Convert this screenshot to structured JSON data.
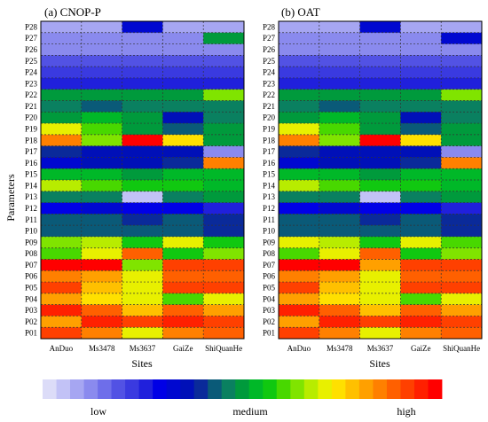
{
  "chart_data": [
    {
      "type": "heatmap",
      "title": "(a) CNOP-P",
      "xlabel": "Sites",
      "ylabel": "Parameters",
      "categories": [
        "AnDuo",
        "Ms3478",
        "Ms3637",
        "GaiZe",
        "ShiQuanHe"
      ],
      "parameters": [
        "P28",
        "P27",
        "P26",
        "P25",
        "P24",
        "P23",
        "P22",
        "P21",
        "P20",
        "P19",
        "P18",
        "P17",
        "P16",
        "P15",
        "P14",
        "P13",
        "P12",
        "P11",
        "P10",
        "P09",
        "P08",
        "P07",
        "P06",
        "P05",
        "P04",
        "P03",
        "P02",
        "P01"
      ],
      "values": [
        [
          2,
          2,
          9,
          2,
          2
        ],
        [
          3,
          3,
          3,
          3,
          14
        ],
        [
          3,
          3,
          3,
          3,
          3
        ],
        [
          5,
          5,
          5,
          5,
          5
        ],
        [
          6,
          6,
          6,
          6,
          6
        ],
        [
          7,
          7,
          7,
          7,
          7
        ],
        [
          14,
          14,
          14,
          14,
          18
        ],
        [
          13,
          12,
          13,
          13,
          13
        ],
        [
          14,
          15,
          14,
          10,
          13
        ],
        [
          20,
          17,
          14,
          12,
          14
        ],
        [
          24,
          18,
          28,
          21,
          14
        ],
        [
          11,
          10,
          10,
          10,
          3
        ],
        [
          9,
          10,
          10,
          11,
          24
        ],
        [
          15,
          15,
          14,
          15,
          15
        ],
        [
          19,
          17,
          16,
          16,
          15
        ],
        [
          13,
          13,
          1,
          13,
          14
        ],
        [
          8,
          9,
          8,
          8,
          7
        ],
        [
          12,
          12,
          11,
          12,
          11
        ],
        [
          12,
          12,
          12,
          12,
          11
        ],
        [
          18,
          19,
          16,
          20,
          16
        ],
        [
          17,
          20,
          25,
          16,
          18
        ],
        [
          28,
          28,
          18,
          26,
          26
        ],
        [
          24,
          23,
          20,
          25,
          25
        ],
        [
          26,
          22,
          20,
          26,
          26
        ],
        [
          23,
          21,
          20,
          17,
          20
        ],
        [
          27,
          25,
          22,
          25,
          23
        ],
        [
          23,
          27,
          26,
          27,
          26
        ],
        [
          26,
          24,
          20,
          24,
          25
        ]
      ]
    },
    {
      "type": "heatmap",
      "title": "(b) OAT",
      "xlabel": "Sites",
      "ylabel": "",
      "categories": [
        "AnDuo",
        "Ms3478",
        "Ms3637",
        "GaiZe",
        "ShiQuanHe"
      ],
      "parameters": [
        "P28",
        "P27",
        "P26",
        "P25",
        "P24",
        "P23",
        "P22",
        "P21",
        "P20",
        "P19",
        "P18",
        "P17",
        "P16",
        "P15",
        "P14",
        "P13",
        "P12",
        "P11",
        "P10",
        "P09",
        "P08",
        "P07",
        "P06",
        "P05",
        "P04",
        "P03",
        "P02",
        "P01"
      ],
      "values": [
        [
          2,
          2,
          9,
          2,
          2
        ],
        [
          3,
          3,
          3,
          3,
          9
        ],
        [
          3,
          3,
          3,
          3,
          3
        ],
        [
          5,
          5,
          5,
          5,
          5
        ],
        [
          6,
          6,
          6,
          6,
          6
        ],
        [
          7,
          7,
          7,
          7,
          7
        ],
        [
          14,
          14,
          14,
          14,
          18
        ],
        [
          13,
          12,
          13,
          13,
          13
        ],
        [
          14,
          15,
          14,
          10,
          13
        ],
        [
          20,
          17,
          14,
          12,
          14
        ],
        [
          24,
          18,
          28,
          21,
          14
        ],
        [
          11,
          10,
          10,
          10,
          3
        ],
        [
          9,
          10,
          10,
          11,
          24
        ],
        [
          15,
          15,
          14,
          15,
          15
        ],
        [
          19,
          17,
          16,
          16,
          15
        ],
        [
          13,
          13,
          1,
          13,
          14
        ],
        [
          8,
          9,
          8,
          8,
          7
        ],
        [
          12,
          12,
          11,
          12,
          11
        ],
        [
          12,
          12,
          12,
          12,
          11
        ],
        [
          20,
          19,
          16,
          20,
          17
        ],
        [
          17,
          20,
          25,
          16,
          18
        ],
        [
          28,
          28,
          23,
          26,
          26
        ],
        [
          24,
          23,
          20,
          25,
          25
        ],
        [
          26,
          22,
          20,
          26,
          26
        ],
        [
          23,
          21,
          20,
          17,
          20
        ],
        [
          27,
          25,
          22,
          25,
          23
        ],
        [
          23,
          27,
          26,
          27,
          26
        ],
        [
          26,
          24,
          20,
          24,
          25
        ]
      ]
    }
  ],
  "colorbar": {
    "low_label": "low",
    "medium_label": "medium",
    "high_label": "high",
    "colors": [
      "#dcdcf8",
      "#c2c2f6",
      "#a6a6f2",
      "#8a8aee",
      "#6e6eea",
      "#5252e4",
      "#3a3ae0",
      "#2020dc",
      "#0000e6",
      "#0008d0",
      "#0010b8",
      "#0a2a9a",
      "#0a5a78",
      "#0a8060",
      "#009a3c",
      "#00b828",
      "#10c810",
      "#48d800",
      "#80e400",
      "#b8ec00",
      "#e8f000",
      "#ffe000",
      "#ffc000",
      "#ffa000",
      "#ff8000",
      "#ff6000",
      "#ff4000",
      "#ff2000",
      "#ff0000"
    ]
  }
}
